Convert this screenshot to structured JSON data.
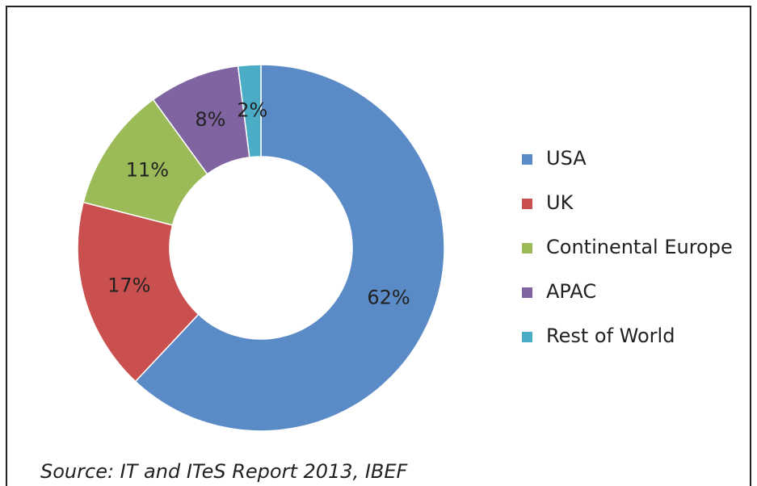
{
  "chart_data": {
    "type": "donut",
    "categories": [
      "USA",
      "UK",
      "Continental Europe",
      "APAC",
      "Rest of World"
    ],
    "values": [
      62,
      17,
      11,
      8,
      2
    ],
    "value_labels": [
      "62%",
      "17%",
      "11%",
      "8%",
      "2%"
    ],
    "colors": [
      "#5b8bc6",
      "#c9504e",
      "#9bbb59",
      "#8064a2",
      "#4bacc6"
    ],
    "legend": "right",
    "source": "Source: IT and ITeS Report 2013, IBEF"
  }
}
